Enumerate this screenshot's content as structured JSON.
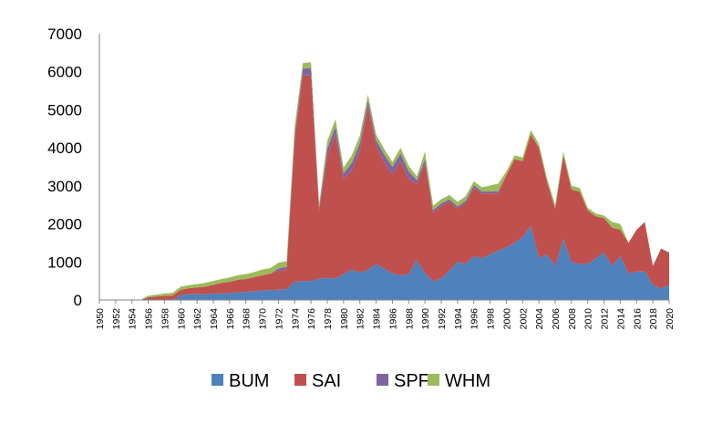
{
  "chart_data": {
    "type": "area",
    "stacked": true,
    "ylim": [
      0,
      7000
    ],
    "yticks": [
      0,
      1000,
      2000,
      3000,
      4000,
      5000,
      6000,
      7000
    ],
    "xtick_labels": [
      "1950",
      "1952",
      "1954",
      "1956",
      "1958",
      "1960",
      "1962",
      "1964",
      "1966",
      "1968",
      "1970",
      "1972",
      "1974",
      "1976",
      "1978",
      "1980",
      "1982",
      "1984",
      "1986",
      "1988",
      "1990",
      "1992",
      "1994",
      "1996",
      "1998",
      "2000",
      "2002",
      "2004",
      "2006",
      "2008",
      "2010",
      "2012",
      "2014",
      "2016",
      "2018",
      "2020"
    ],
    "legend_position": "bottom",
    "grid": false,
    "x": [
      1950,
      1951,
      1952,
      1953,
      1954,
      1955,
      1956,
      1957,
      1958,
      1959,
      1960,
      1961,
      1962,
      1963,
      1964,
      1965,
      1966,
      1967,
      1968,
      1969,
      1970,
      1971,
      1972,
      1973,
      1974,
      1975,
      1976,
      1977,
      1978,
      1979,
      1980,
      1981,
      1982,
      1983,
      1984,
      1985,
      1986,
      1987,
      1988,
      1989,
      1990,
      1991,
      1992,
      1993,
      1994,
      1995,
      1996,
      1997,
      1998,
      1999,
      2000,
      2001,
      2002,
      2003,
      2004,
      2005,
      2006,
      2007,
      2008,
      2009,
      2010,
      2011,
      2012,
      2013,
      2014,
      2015,
      2016,
      2017,
      2018,
      2019,
      2020
    ],
    "series": [
      {
        "name": "BUM",
        "color": "#4f81bd",
        "values": [
          0,
          0,
          0,
          0,
          0,
          0,
          0,
          0,
          0,
          0,
          130,
          150,
          150,
          150,
          170,
          170,
          180,
          200,
          210,
          230,
          250,
          260,
          270,
          290,
          480,
          500,
          500,
          560,
          580,
          560,
          680,
          800,
          720,
          790,
          950,
          820,
          700,
          650,
          680,
          1050,
          700,
          490,
          570,
          780,
          1000,
          950,
          1150,
          1100,
          1200,
          1300,
          1380,
          1500,
          1650,
          1950,
          1100,
          1200,
          900,
          1600,
          1000,
          950,
          950,
          1100,
          1250,
          900,
          1150,
          700,
          750,
          750,
          400,
          300,
          400
        ]
      },
      {
        "name": "SAI",
        "color": "#c0504d",
        "values": [
          0,
          0,
          0,
          0,
          0,
          0,
          70,
          90,
          110,
          120,
          140,
          160,
          180,
          200,
          230,
          280,
          300,
          330,
          340,
          370,
          400,
          430,
          500,
          500,
          3800,
          5400,
          5400,
          1800,
          3200,
          3800,
          2500,
          2600,
          3200,
          4300,
          3100,
          2800,
          2600,
          3000,
          2500,
          2000,
          2900,
          1800,
          1900,
          1800,
          1400,
          1600,
          1800,
          1700,
          1600,
          1500,
          1900,
          2200,
          2000,
          2400,
          2900,
          1900,
          1500,
          2200,
          1900,
          1900,
          1400,
          1100,
          900,
          1000,
          700,
          800,
          1100,
          1300,
          500,
          1050,
          850
        ]
      },
      {
        "name": "SPF",
        "color": "#8064a2",
        "values": [
          0,
          0,
          0,
          0,
          0,
          0,
          0,
          0,
          0,
          0,
          0,
          0,
          0,
          0,
          0,
          0,
          0,
          0,
          0,
          0,
          0,
          0,
          60,
          80,
          100,
          180,
          200,
          70,
          200,
          200,
          150,
          200,
          200,
          150,
          150,
          200,
          200,
          200,
          200,
          100,
          100,
          70,
          70,
          70,
          60,
          60,
          70,
          50,
          60,
          60,
          0,
          0,
          0,
          0,
          0,
          0,
          0,
          0,
          0,
          0,
          0,
          0,
          0,
          0,
          0,
          0,
          0,
          0,
          0,
          0,
          0
        ]
      },
      {
        "name": "WHM",
        "color": "#9bbb59",
        "values": [
          0,
          0,
          0,
          0,
          0,
          0,
          40,
          50,
          60,
          70,
          80,
          80,
          90,
          100,
          100,
          100,
          110,
          120,
          130,
          130,
          150,
          150,
          150,
          150,
          200,
          150,
          150,
          100,
          200,
          200,
          150,
          200,
          200,
          160,
          150,
          150,
          130,
          150,
          150,
          100,
          200,
          120,
          110,
          110,
          120,
          120,
          100,
          110,
          150,
          200,
          100,
          100,
          100,
          120,
          100,
          100,
          100,
          100,
          100,
          100,
          70,
          70,
          70,
          150,
          150,
          0,
          0,
          0,
          0,
          0,
          0
        ]
      }
    ]
  }
}
